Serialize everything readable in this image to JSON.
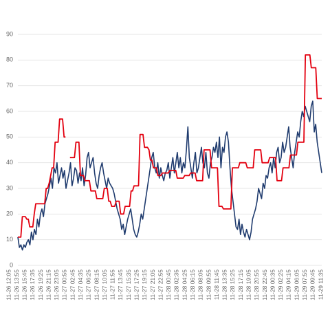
{
  "chart_data": {
    "type": "line",
    "title": "",
    "xlabel": "",
    "ylabel": "",
    "ylim": [
      0,
      90
    ],
    "yticks": [
      0,
      10,
      20,
      30,
      40,
      50,
      60,
      70,
      80,
      90
    ],
    "grid": true,
    "legend": "none",
    "x_tick_labels": [
      "11-26 12:05",
      "11-26 13:55",
      "11-26 15:45",
      "11-26 17:35",
      "11-26 19:25",
      "11-26 21:15",
      "11-26 23:05",
      "11-27 00:55",
      "11-27 02:45",
      "11-27 04:35",
      "11-27 06:25",
      "11-27 08:15",
      "11-27 10:05",
      "11-27 11:55",
      "11-27 13:45",
      "11-27 15:35",
      "11-27 17:25",
      "11-27 19:15",
      "11-27 21:05",
      "11-27 22:55",
      "11-28 00:45",
      "11-28 02:35",
      "11-28 04:25",
      "11-28 06:15",
      "11-28 08:05",
      "11-28 09:55",
      "11-28 11:45",
      "11-28 13:35",
      "11-28 15:25",
      "11-28 17:15",
      "11-28 19:05",
      "11-28 20:55",
      "11-28 22:45",
      "11-29 00:35",
      "11-29 02:25",
      "11-29 04:15",
      "11-29 06:05",
      "11-29 07:55",
      "11-29 09:45",
      "11-29 11:35"
    ],
    "series": [
      {
        "color": "#1f3b6e",
        "values": [
          11,
          7,
          8,
          6,
          8,
          7,
          9,
          10,
          8,
          13,
          10,
          14,
          12,
          18,
          15,
          20,
          22,
          19,
          24,
          26,
          28,
          31,
          34,
          30,
          38,
          36,
          40,
          32,
          35,
          38,
          34,
          37,
          30,
          33,
          36,
          40,
          31,
          34,
          38,
          37,
          32,
          36,
          33,
          38,
          31,
          35,
          42,
          44,
          38,
          40,
          42,
          36,
          32,
          30,
          35,
          38,
          40,
          36,
          33,
          30,
          34,
          32,
          31,
          30,
          28,
          25,
          22,
          20,
          18,
          14,
          16,
          12,
          15,
          18,
          20,
          22,
          18,
          14,
          12,
          11,
          13,
          16,
          20,
          18,
          22,
          26,
          30,
          34,
          38,
          42,
          44,
          38,
          36,
          40,
          34,
          38,
          35,
          33,
          36,
          37,
          40,
          34,
          38,
          42,
          36,
          40,
          44,
          38,
          42,
          36,
          40,
          38,
          45,
          54,
          42,
          38,
          34,
          40,
          44,
          36,
          38,
          42,
          46,
          40,
          38,
          44,
          36,
          34,
          40,
          42,
          46,
          44,
          48,
          42,
          50,
          38,
          46,
          44,
          50,
          52,
          48,
          38,
          30,
          25,
          20,
          15,
          14,
          18,
          12,
          16,
          13,
          11,
          14,
          12,
          10,
          13,
          18,
          20,
          22,
          25,
          30,
          28,
          26,
          32,
          30,
          35,
          34,
          38,
          40,
          36,
          42,
          38,
          44,
          46,
          40,
          42,
          48,
          44,
          46,
          50,
          54,
          46,
          42,
          38,
          44,
          48,
          52,
          50,
          56,
          60,
          58,
          62,
          60,
          58,
          56,
          62,
          64,
          52,
          55,
          48,
          44,
          40,
          36
        ]
      },
      {
        "color": "#e3000f",
        "values": [
          11,
          11,
          11,
          19,
          19,
          19,
          18,
          18,
          15,
          15,
          15,
          20,
          24,
          24,
          24,
          24,
          24,
          24,
          24,
          30,
          30,
          32,
          35,
          38,
          38,
          48,
          48,
          48,
          57,
          57,
          57,
          50,
          50,
          null,
          null,
          42,
          42,
          42,
          42,
          48,
          48,
          48,
          35,
          35,
          35,
          33,
          33,
          33,
          33,
          29,
          29,
          29,
          29,
          26,
          26,
          26,
          26,
          26,
          30,
          30,
          30,
          25,
          25,
          23,
          23,
          23,
          25,
          25,
          25,
          20,
          20,
          20,
          23,
          23,
          23,
          23,
          29,
          29,
          31,
          31,
          31,
          31,
          51,
          51,
          51,
          46,
          46,
          46,
          45,
          41,
          41,
          38,
          38,
          38,
          35,
          35,
          35,
          36,
          36,
          36,
          36,
          36,
          37,
          37,
          37,
          37,
          37,
          34,
          34,
          34,
          34,
          34,
          35,
          35,
          35,
          35,
          36,
          36,
          36,
          36,
          33,
          33,
          33,
          33,
          33,
          45,
          45,
          45,
          45,
          45,
          38,
          38,
          38,
          38,
          38,
          23,
          23,
          23,
          22,
          22,
          22,
          22,
          22,
          22,
          38,
          38,
          38,
          38,
          38,
          40,
          40,
          40,
          40,
          40,
          38,
          38,
          38,
          38,
          38,
          45,
          45,
          45,
          45,
          45,
          40,
          40,
          40,
          40,
          40,
          42,
          42,
          42,
          42,
          42,
          33,
          33,
          33,
          33,
          38,
          38,
          38,
          38,
          38,
          43,
          43,
          43,
          43,
          43,
          48,
          48,
          48,
          48,
          48,
          82,
          82,
          82,
          82,
          77,
          77,
          77,
          77,
          65,
          65,
          65,
          65
        ]
      }
    ]
  }
}
